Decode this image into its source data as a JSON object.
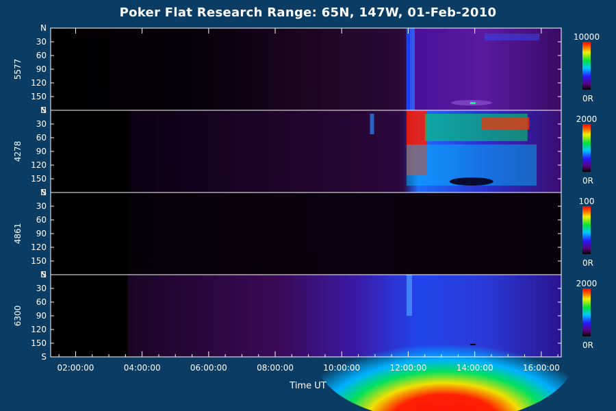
{
  "chart_data": {
    "type": "heatmap",
    "title": "Poker Flat Research Range: 65N, 147W, 01-Feb-2010",
    "xlabel": "Time UT",
    "x_ticks": [
      "02:00:00",
      "04:00:00",
      "06:00:00",
      "08:00:00",
      "10:00:00",
      "12:00:00",
      "14:00:00",
      "16:00:00"
    ],
    "xlim_hours": [
      1.25,
      16.6
    ],
    "y_ticks": [
      "N",
      "30",
      "60",
      "90",
      "120",
      "150",
      "S"
    ],
    "ylim_degrees": [
      0,
      180
    ],
    "colormap": "rainbow (black-purple-blue-cyan-green-yellow-red)",
    "panels": [
      {
        "ylabel": "5577",
        "cbar_max": "10000",
        "cbar_min": "0R"
      },
      {
        "ylabel": "4278",
        "cbar_max": "2000",
        "cbar_min": "0R"
      },
      {
        "ylabel": "4861",
        "cbar_max": "100",
        "cbar_min": "0R"
      },
      {
        "ylabel": "6300",
        "cbar_max": "2000",
        "cbar_min": "0R"
      }
    ]
  }
}
